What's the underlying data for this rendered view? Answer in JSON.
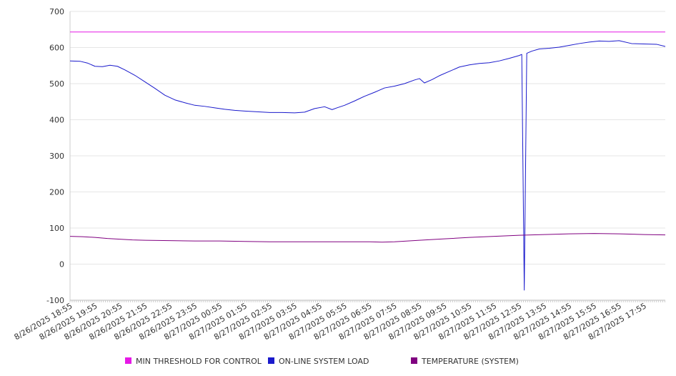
{
  "chart_data": {
    "type": "line",
    "title": "",
    "xlabel": "",
    "ylabel": "",
    "ylim": [
      -100,
      700
    ],
    "yticks": [
      -100,
      0,
      100,
      200,
      300,
      400,
      500,
      600,
      700
    ],
    "grid": true,
    "legend_position": "bottom",
    "x_tick_labels": [
      "8/26/2025 18:55",
      "8/26/2025 19:55",
      "8/26/2025 20:55",
      "8/26/2025 21:55",
      "8/26/2025 22:55",
      "8/26/2025 23:55",
      "8/27/2025 00:55",
      "8/27/2025 01:55",
      "8/27/2025 02:55",
      "8/27/2025 03:55",
      "8/27/2025 04:55",
      "8/27/2025 05:55",
      "8/27/2025 06:55",
      "8/27/2025 07:55",
      "8/27/2025 08:55",
      "8/27/2025 09:55",
      "8/27/2025 10:55",
      "8/27/2025 11:55",
      "8/27/2025 12:55",
      "8/27/2025 13:55",
      "8/27/2025 14:55",
      "8/27/2025 15:55",
      "8/27/2025 16:55",
      "8/27/2025 17:55"
    ],
    "x_hours_per_tick": 1,
    "x_end": 23.85,
    "series": [
      {
        "name": "MIN THRESHOLD FOR CONTROL",
        "color": "#e619e6",
        "x": [
          0,
          23.85
        ],
        "values": [
          643,
          643
        ]
      },
      {
        "name": "ON-LINE SYSTEM LOAD",
        "color": "#1a1acc",
        "x": [
          0,
          0.4,
          0.7,
          1.0,
          1.3,
          1.6,
          1.9,
          2.2,
          2.6,
          3.0,
          3.4,
          3.8,
          4.2,
          4.6,
          5.0,
          5.4,
          5.8,
          6.2,
          6.6,
          7.0,
          7.5,
          8.0,
          8.5,
          9.0,
          9.4,
          9.8,
          10.2,
          10.5,
          10.7,
          11.0,
          11.4,
          11.8,
          12.2,
          12.6,
          13.0,
          13.4,
          13.8,
          14.0,
          14.2,
          14.5,
          14.8,
          15.2,
          15.6,
          16.0,
          16.4,
          16.8,
          17.2,
          17.6,
          18.0,
          18.1,
          18.2,
          18.3,
          18.5,
          18.8,
          19.2,
          19.6,
          20.0,
          20.4,
          20.8,
          21.2,
          21.6,
          22.0,
          22.5,
          23.0,
          23.5,
          23.85
        ],
        "values": [
          563,
          562,
          557,
          548,
          547,
          551,
          548,
          538,
          523,
          505,
          487,
          468,
          455,
          447,
          440,
          437,
          433,
          429,
          426,
          424,
          422,
          420,
          420,
          419,
          421,
          431,
          436,
          428,
          433,
          440,
          452,
          465,
          476,
          488,
          493,
          500,
          510,
          514,
          502,
          511,
          522,
          534,
          546,
          552,
          556,
          558,
          563,
          570,
          578,
          581,
          -72,
          584,
          590,
          596,
          598,
          601,
          606,
          611,
          615,
          618,
          617,
          619,
          611,
          610,
          609,
          603
        ]
      },
      {
        "name": "TEMPERATURE (SYSTEM)",
        "color": "#800080",
        "x": [
          0,
          0.5,
          1.0,
          1.5,
          2.0,
          2.5,
          3.0,
          4.0,
          5.0,
          6.0,
          7.0,
          8.0,
          9.0,
          10.0,
          11.0,
          12.0,
          12.5,
          13.0,
          14.0,
          15.0,
          16.0,
          17.0,
          18.0,
          19.0,
          20.0,
          21.0,
          22.0,
          23.0,
          23.85
        ],
        "values": [
          77,
          76,
          74,
          71,
          69,
          67,
          66,
          65,
          64,
          64,
          63,
          62,
          62,
          62,
          62,
          62,
          61,
          62,
          66,
          70,
          74,
          77,
          80,
          82,
          84,
          85,
          84,
          82,
          81
        ]
      }
    ]
  }
}
